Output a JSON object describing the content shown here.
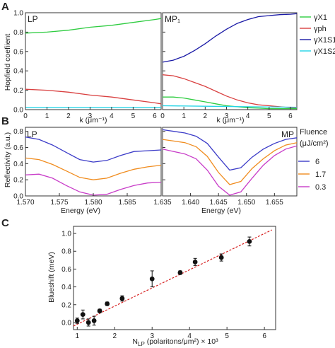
{
  "chart_data": [
    {
      "id": "A",
      "panel_label": "A",
      "type": "line",
      "ylabel": "Hopfield coefiient",
      "ylim": [
        0,
        1.0
      ],
      "yticks": [
        "0.0",
        "0.2",
        "0.4",
        "0.6",
        "0.8",
        "1.0"
      ],
      "legend": [
        {
          "label": "γX1",
          "color": "#2ecc40"
        },
        {
          "label": "γph",
          "color": "#d94040"
        },
        {
          "label": "γX1S1",
          "color": "#1a1aa6"
        },
        {
          "label": "γX1S2",
          "color": "#22d4e6"
        }
      ],
      "subplots": [
        {
          "label": "LP",
          "xlabel": "k (μm⁻¹)",
          "xlim": [
            0,
            6.3
          ],
          "xticks": [
            "0",
            "1",
            "2",
            "3",
            "4",
            "5",
            "6"
          ],
          "series": [
            {
              "color": "#2ecc40",
              "x": [
                0,
                1,
                2,
                3,
                4,
                5,
                6,
                6.3
              ],
              "y": [
                0.79,
                0.8,
                0.82,
                0.85,
                0.87,
                0.9,
                0.93,
                0.94
              ]
            },
            {
              "color": "#d94040",
              "x": [
                0,
                1,
                2,
                3,
                4,
                5,
                6,
                6.3
              ],
              "y": [
                0.21,
                0.2,
                0.18,
                0.15,
                0.13,
                0.1,
                0.07,
                0.06
              ]
            },
            {
              "color": "#22d4e6",
              "x": [
                0,
                6.3
              ],
              "y": [
                0.02,
                0.02
              ]
            }
          ]
        },
        {
          "label": "MP₁",
          "xlabel": "k (μm⁻¹)",
          "xlim": [
            0,
            6.3
          ],
          "xticks": [
            "0",
            "1",
            "2",
            "3",
            "4",
            "5",
            "6"
          ],
          "series": [
            {
              "color": "#1a1aa6",
              "x": [
                0,
                0.5,
                1,
                1.5,
                2,
                2.5,
                3,
                3.5,
                4,
                4.5,
                5,
                5.5,
                6,
                6.3
              ],
              "y": [
                0.49,
                0.51,
                0.55,
                0.61,
                0.68,
                0.76,
                0.83,
                0.89,
                0.93,
                0.96,
                0.97,
                0.98,
                0.985,
                0.99
              ]
            },
            {
              "color": "#d94040",
              "x": [
                0,
                0.5,
                1,
                1.5,
                2,
                2.5,
                3,
                3.5,
                4,
                4.5,
                5,
                5.5,
                6,
                6.3
              ],
              "y": [
                0.36,
                0.35,
                0.32,
                0.28,
                0.24,
                0.19,
                0.14,
                0.1,
                0.07,
                0.05,
                0.04,
                0.03,
                0.02,
                0.02
              ]
            },
            {
              "color": "#2ecc40",
              "x": [
                0,
                0.5,
                1,
                1.5,
                2,
                2.5,
                3,
                3.5,
                4,
                4.5,
                5,
                5.5,
                6,
                6.3
              ],
              "y": [
                0.13,
                0.13,
                0.12,
                0.1,
                0.08,
                0.06,
                0.04,
                0.03,
                0.02,
                0.015,
                0.01,
                0.01,
                0.01,
                0.01
              ]
            },
            {
              "color": "#22d4e6",
              "x": [
                0,
                2,
                4,
                6.3
              ],
              "y": [
                0.04,
                0.035,
                0.03,
                0.025
              ]
            }
          ]
        }
      ]
    },
    {
      "id": "B",
      "panel_label": "B",
      "type": "line",
      "ylabel": "Reflectivity (a.u.)",
      "ylim": [
        0,
        0.85
      ],
      "yticks": [
        "0.0",
        "0.2",
        "0.4",
        "0.6",
        "0.8"
      ],
      "legend_title": "Fluence (μJ/cm²)",
      "legend": [
        {
          "label": "6",
          "color": "#3c3cc8"
        },
        {
          "label": "1.7",
          "color": "#f08c1e"
        },
        {
          "label": "0.3",
          "color": "#c83cc8"
        }
      ],
      "subplots": [
        {
          "label": "LP",
          "xlabel": "Energy (eV)",
          "xlim": [
            1.57,
            1.59
          ],
          "xticks": [
            "1.570",
            "1.575",
            "1.580",
            "1.585"
          ],
          "xtick_values": [
            1.57,
            1.575,
            1.58,
            1.585
          ],
          "series": [
            {
              "color": "#3c3cc8",
              "x": [
                1.57,
                1.572,
                1.574,
                1.576,
                1.578,
                1.58,
                1.582,
                1.584,
                1.586,
                1.588,
                1.59
              ],
              "y": [
                0.73,
                0.7,
                0.63,
                0.54,
                0.45,
                0.42,
                0.44,
                0.5,
                0.55,
                0.56,
                0.57
              ]
            },
            {
              "color": "#f08c1e",
              "x": [
                1.57,
                1.572,
                1.574,
                1.576,
                1.578,
                1.58,
                1.582,
                1.584,
                1.586,
                1.588,
                1.59
              ],
              "y": [
                0.47,
                0.45,
                0.39,
                0.31,
                0.23,
                0.2,
                0.22,
                0.28,
                0.33,
                0.36,
                0.38
              ]
            },
            {
              "color": "#c83cc8",
              "x": [
                1.57,
                1.572,
                1.574,
                1.576,
                1.578,
                1.58,
                1.582,
                1.584,
                1.586,
                1.588,
                1.59
              ],
              "y": [
                0.26,
                0.27,
                0.22,
                0.13,
                0.05,
                0.01,
                0.02,
                0.08,
                0.13,
                0.16,
                0.17
              ]
            }
          ]
        },
        {
          "label": "MP",
          "xlabel": "Energy (eV)",
          "xlim": [
            1.635,
            1.659
          ],
          "xticks": [
            "1.635",
            "1.640",
            "1.645",
            "1.650",
            "1.655"
          ],
          "xtick_values": [
            1.635,
            1.64,
            1.645,
            1.65,
            1.655
          ],
          "series": [
            {
              "color": "#3c3cc8",
              "x": [
                1.635,
                1.637,
                1.639,
                1.641,
                1.643,
                1.645,
                1.647,
                1.649,
                1.651,
                1.653,
                1.655,
                1.657,
                1.659
              ],
              "y": [
                0.82,
                0.8,
                0.78,
                0.74,
                0.65,
                0.48,
                0.32,
                0.35,
                0.48,
                0.58,
                0.65,
                0.7,
                0.72
              ]
            },
            {
              "color": "#f08c1e",
              "x": [
                1.635,
                1.637,
                1.639,
                1.641,
                1.643,
                1.645,
                1.647,
                1.649,
                1.651,
                1.653,
                1.655,
                1.657,
                1.659
              ],
              "y": [
                0.7,
                0.68,
                0.66,
                0.61,
                0.49,
                0.29,
                0.14,
                0.18,
                0.34,
                0.46,
                0.56,
                0.63,
                0.66
              ]
            },
            {
              "color": "#c83cc8",
              "x": [
                1.635,
                1.637,
                1.639,
                1.641,
                1.643,
                1.645,
                1.647,
                1.649,
                1.651,
                1.653,
                1.655,
                1.657,
                1.659
              ],
              "y": [
                0.58,
                0.55,
                0.52,
                0.46,
                0.32,
                0.12,
                0.01,
                0.05,
                0.22,
                0.38,
                0.5,
                0.58,
                0.62
              ]
            }
          ]
        }
      ]
    },
    {
      "id": "C",
      "panel_label": "C",
      "type": "scatter",
      "xlabel": "N_LP (polaritons/μm²) × 10³",
      "ylabel": "Blueshift (meV)",
      "xlim": [
        0.9,
        6.3
      ],
      "ylim": [
        -0.08,
        1.08
      ],
      "xticks": [
        "1",
        "2",
        "3",
        "4",
        "5",
        "6"
      ],
      "xtick_values": [
        1,
        2,
        3,
        4,
        5,
        6
      ],
      "yticks": [
        "0.0",
        "0.2",
        "0.4",
        "0.6",
        "0.8",
        "1.0"
      ],
      "ytick_values": [
        0,
        0.2,
        0.4,
        0.6,
        0.8,
        1.0
      ],
      "points": [
        {
          "x": 1.0,
          "y": 0.02,
          "err": 0.03
        },
        {
          "x": 1.15,
          "y": 0.09,
          "err": 0.05
        },
        {
          "x": 1.3,
          "y": 0.0,
          "err": 0.04
        },
        {
          "x": 1.45,
          "y": 0.02,
          "err": 0.05
        },
        {
          "x": 1.6,
          "y": 0.13,
          "err": 0.02
        },
        {
          "x": 1.8,
          "y": 0.21,
          "err": 0.02
        },
        {
          "x": 2.2,
          "y": 0.27,
          "err": 0.03
        },
        {
          "x": 3.0,
          "y": 0.49,
          "err": 0.09
        },
        {
          "x": 3.75,
          "y": 0.56,
          "err": 0.02
        },
        {
          "x": 4.15,
          "y": 0.68,
          "err": 0.04
        },
        {
          "x": 4.85,
          "y": 0.73,
          "err": 0.04
        },
        {
          "x": 5.6,
          "y": 0.91,
          "err": 0.05
        }
      ],
      "fit": {
        "color": "#d62020",
        "x": [
          0.9,
          6.2
        ],
        "y": [
          -0.04,
          1.04
        ]
      }
    }
  ]
}
